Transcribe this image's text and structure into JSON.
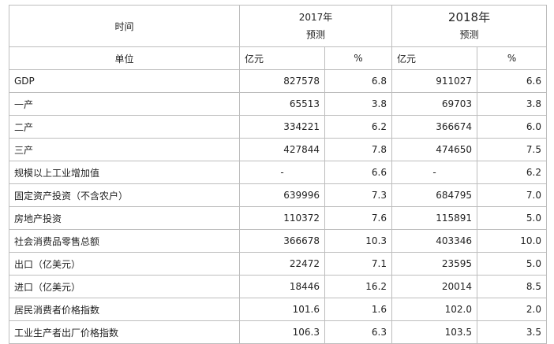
{
  "header": {
    "time_label": "时间",
    "unit_label": "单位",
    "year_2017": "2017年",
    "year_2018": "2018年",
    "forecast_label": "预测",
    "unit_yuan": "亿元",
    "unit_pct": "%"
  },
  "rows": [
    {
      "label": "GDP",
      "v2017": "827578",
      "p2017": "6.8",
      "v2018": "911027",
      "p2018": "6.6"
    },
    {
      "label": "一产",
      "v2017": "65513",
      "p2017": "3.8",
      "v2018": "69703",
      "p2018": "3.8"
    },
    {
      "label": "二产",
      "v2017": "334221",
      "p2017": "6.2",
      "v2018": "366674",
      "p2018": "6.0"
    },
    {
      "label": "三产",
      "v2017": "427844",
      "p2017": "7.8",
      "v2018": "474650",
      "p2018": "7.5"
    },
    {
      "label": "规模以上工业增加值",
      "v2017": "-",
      "p2017": "6.6",
      "v2018": "-",
      "p2018": "6.2"
    },
    {
      "label": "固定资产投资（不含农户）",
      "v2017": "639996",
      "p2017": "7.3",
      "v2018": "684795",
      "p2018": "7.0"
    },
    {
      "label": "房地产投资",
      "v2017": "110372",
      "p2017": "7.6",
      "v2018": "115891",
      "p2018": "5.0"
    },
    {
      "label": "社会消费品零售总额",
      "v2017": "366678",
      "p2017": "10.3",
      "v2018": "403346",
      "p2018": "10.0"
    },
    {
      "label": "出口（亿美元）",
      "v2017": "22472",
      "p2017": "7.1",
      "v2018": "23595",
      "p2018": "5.0"
    },
    {
      "label": "进口（亿美元）",
      "v2017": "18446",
      "p2017": "16.2",
      "v2018": "20014",
      "p2018": "8.5"
    },
    {
      "label": "居民消费者价格指数",
      "v2017": "101.6",
      "p2017": "1.6",
      "v2018": "102.0",
      "p2018": "2.0"
    },
    {
      "label": "工业生产者出厂价格指数",
      "v2017": "106.3",
      "p2017": "6.3",
      "v2018": "103.5",
      "p2018": "3.5"
    }
  ]
}
